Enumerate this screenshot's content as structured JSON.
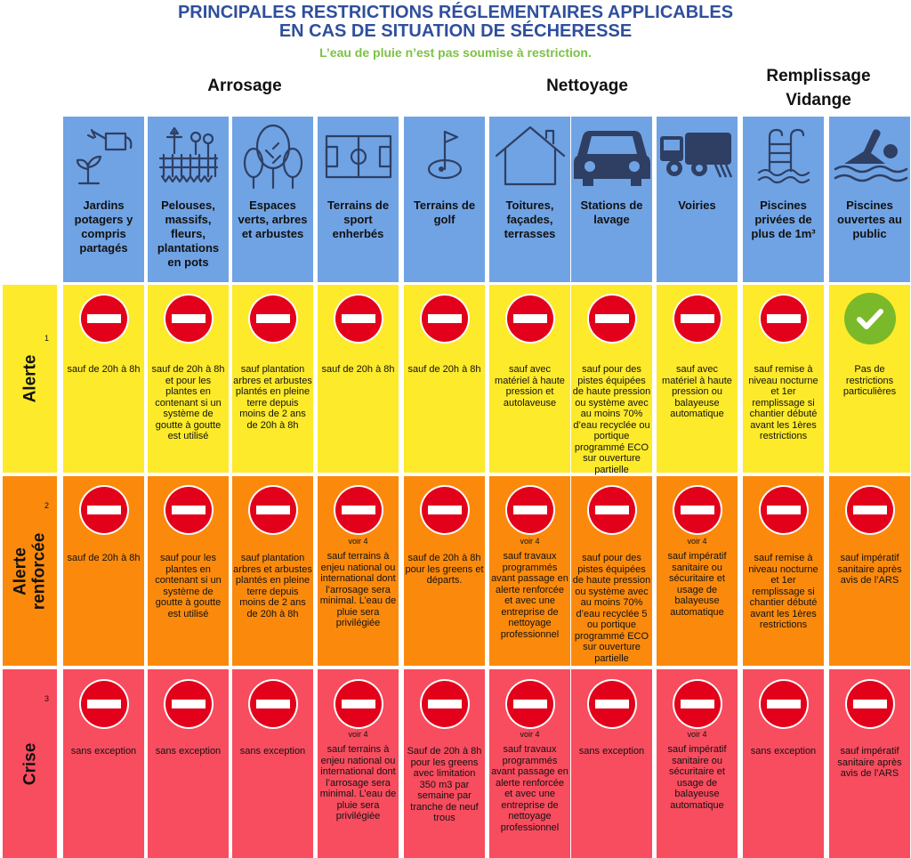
{
  "title_line1": "PRINCIPALES RESTRICTIONS RÉGLEMENTAIRES APPLICABLES",
  "title_line2": "EN CAS DE SITUATION DE SÉCHERESSE",
  "subtitle": "L’eau de pluie n’est pas soumise à restriction.",
  "groups": {
    "arrosage": "Arrosage",
    "nettoyage": "Nettoyage",
    "remplissage_line1": "Remplissage",
    "remplissage_line2": "Vidange"
  },
  "colors": {
    "header": "#70a3e4",
    "alerte": "#fdea2a",
    "alerte_renforcee": "#fb8a0c",
    "crise": "#f84d5f",
    "no_entry": "#e3001b",
    "check": "#7ab929",
    "title": "#2f4f9c",
    "subtitle": "#7cc242"
  },
  "levels": [
    {
      "name": "Alerte",
      "number": "1"
    },
    {
      "name": "Alerte renforcée",
      "number": "2"
    },
    {
      "name": "Crise",
      "number": "3"
    }
  ],
  "columns": [
    {
      "label": "Jardins potagers y compris partagés",
      "icon": "watering-can-plant-icon",
      "alerte": {
        "sign": "no-entry",
        "note": "sauf de 20h à 8h"
      },
      "renforcee": {
        "sign": "no-entry",
        "note": "sauf de 20h à 8h"
      },
      "crise": {
        "sign": "no-entry",
        "note": "sans exception"
      }
    },
    {
      "label": "Pelouses, massifs, fleurs, plantations en pots",
      "icon": "flower-bed-icon",
      "alerte": {
        "sign": "no-entry",
        "note": "sauf de 20h à 8h et pour les plantes en contenant si un système de goutte à goutte est utilisé"
      },
      "renforcee": {
        "sign": "no-entry",
        "note": "sauf pour les plantes en contenant si un système de goutte à goutte est utilisé"
      },
      "crise": {
        "sign": "no-entry",
        "note": "sans exception"
      }
    },
    {
      "label": "Espaces verts, arbres et arbustes",
      "icon": "trees-icon",
      "alerte": {
        "sign": "no-entry",
        "note": "sauf plantation arbres et arbustes plantés en pleine terre depuis moins de 2 ans de 20h à 8h"
      },
      "renforcee": {
        "sign": "no-entry",
        "note": "sauf plantation arbres et arbustes plantés en pleine terre depuis moins de 2 ans de 20h à 8h"
      },
      "crise": {
        "sign": "no-entry",
        "note": "sans exception"
      }
    },
    {
      "label": "Terrains de sport enherbés",
      "icon": "sports-field-icon",
      "alerte": {
        "sign": "no-entry",
        "note": "sauf de 20h à 8h"
      },
      "renforcee": {
        "sign": "no-entry",
        "voir": "voir 4",
        "note": "sauf terrains à enjeu national ou international dont l’arrosage sera minimal. L’eau de pluie sera privilégiée"
      },
      "crise": {
        "sign": "no-entry",
        "voir": "voir 4",
        "note": "sauf terrains à enjeu national ou international dont l’arrosage sera minimal. L’eau de pluie sera privilégiée"
      }
    },
    {
      "label": "Terrains de golf",
      "icon": "golf-flag-icon",
      "alerte": {
        "sign": "no-entry",
        "note": "sauf de 20h à 8h"
      },
      "renforcee": {
        "sign": "no-entry",
        "note": "sauf de 20h à 8h pour les greens et départs."
      },
      "crise": {
        "sign": "no-entry",
        "note": "Sauf de 20h à 8h pour les greens avec limitation 350 m3 par semaine par tranche de neuf trous"
      }
    },
    {
      "label": "Toitures, façades, terrasses",
      "icon": "house-icon",
      "alerte": {
        "sign": "no-entry",
        "note": "sauf avec matériel à haute pression et autolaveuse"
      },
      "renforcee": {
        "sign": "no-entry",
        "voir": "voir 4",
        "note": "sauf travaux programmés avant passage en alerte renforcée et avec une entreprise de nettoyage professionnel"
      },
      "crise": {
        "sign": "no-entry",
        "voir": "voir 4",
        "note": "sauf travaux programmés avant passage en alerte renforcée et avec une entreprise de nettoyage professionnel"
      }
    },
    {
      "label": "Stations de lavage",
      "icon": "car-icon",
      "alerte": {
        "sign": "no-entry",
        "note": "sauf pour des pistes équipées de haute pression ou système avec au moins 70% d’eau recyclée ou portique programmé ECO sur ouverture partielle"
      },
      "renforcee": {
        "sign": "no-entry",
        "note": "sauf pour des pistes équipées de haute pression ou système avec au moins 70% d’eau recyclée 5 ou portique programmé ECO sur ouverture partielle"
      },
      "crise": {
        "sign": "no-entry",
        "note": "sans exception"
      }
    },
    {
      "label": "Voiries",
      "icon": "street-sweeper-icon",
      "alerte": {
        "sign": "no-entry",
        "note": "sauf avec matériel à haute pression ou balayeuse automatique"
      },
      "renforcee": {
        "sign": "no-entry",
        "voir": "voir 4",
        "note": "sauf impératif sanitaire ou sécuritaire et usage de balayeuse automatique"
      },
      "crise": {
        "sign": "no-entry",
        "voir": "voir 4",
        "note": "sauf impératif sanitaire ou sécuritaire et usage de balayeuse automatique"
      }
    },
    {
      "label": "Piscines privées de plus de 1m³",
      "icon": "pool-ladder-icon",
      "alerte": {
        "sign": "no-entry",
        "note": "sauf remise à niveau nocturne et 1er remplissage si chantier débuté avant les 1ères restrictions"
      },
      "renforcee": {
        "sign": "no-entry",
        "note": "sauf remise à niveau nocturne et 1er remplissage si chantier débuté avant les 1ères restrictions"
      },
      "crise": {
        "sign": "no-entry",
        "note": "sans exception"
      }
    },
    {
      "label": "Piscines ouvertes au public",
      "icon": "swimmer-icon",
      "alerte": {
        "sign": "check",
        "note": "Pas de restrictions particulières"
      },
      "renforcee": {
        "sign": "no-entry",
        "note": "sauf impératif sanitaire après avis de l’ARS"
      },
      "crise": {
        "sign": "no-entry",
        "note": "sauf impératif sanitaire après avis de l’ARS"
      }
    }
  ]
}
